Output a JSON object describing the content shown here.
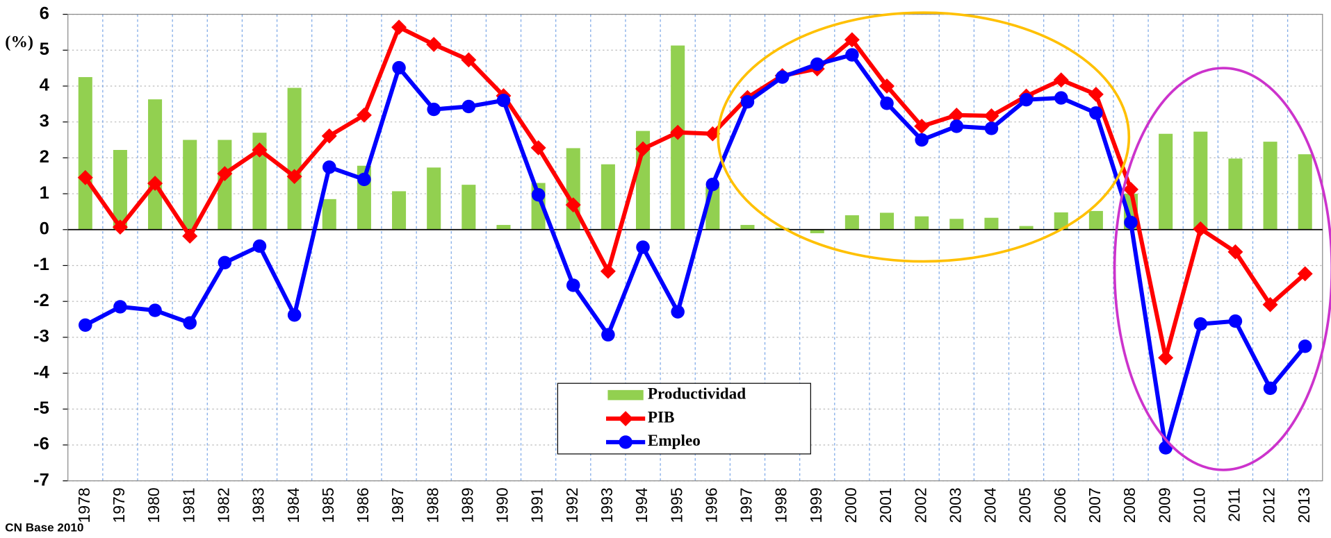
{
  "chart_data": {
    "type": "combo",
    "ylabel": "(%)",
    "source": "CN Base 2010",
    "categories": [
      "1978",
      "1979",
      "1980",
      "1981",
      "1982",
      "1983",
      "1984",
      "1985",
      "1986",
      "1987",
      "1988",
      "1989",
      "1990",
      "1991",
      "1992",
      "1993",
      "1994",
      "1995",
      "1996",
      "1997",
      "1998",
      "1999",
      "2000",
      "2001",
      "2002",
      "2003",
      "2004",
      "2005",
      "2006",
      "2007",
      "2008",
      "2009",
      "2010",
      "2011",
      "2012",
      "2013"
    ],
    "series": [
      {
        "name": "Productividad",
        "type": "bar",
        "color": "#92d050",
        "values": [
          4.25,
          2.22,
          3.63,
          2.5,
          2.5,
          2.7,
          3.95,
          0.85,
          1.78,
          1.07,
          1.73,
          1.25,
          0.13,
          1.3,
          2.27,
          1.82,
          2.75,
          5.13,
          1.2,
          0.13,
          0.05,
          -0.1,
          0.4,
          0.47,
          0.37,
          0.3,
          0.33,
          0.1,
          0.48,
          0.52,
          1.0,
          2.67,
          2.73,
          1.98,
          2.45,
          2.1
        ]
      },
      {
        "name": "PIB",
        "type": "line",
        "marker": "diamond",
        "color": "#ff0000",
        "values": [
          1.45,
          0.07,
          1.29,
          -0.18,
          1.56,
          2.22,
          1.48,
          2.61,
          3.19,
          5.64,
          5.16,
          4.73,
          3.73,
          2.28,
          0.69,
          -1.16,
          2.25,
          2.71,
          2.67,
          3.68,
          4.29,
          4.48,
          5.29,
          4.0,
          2.88,
          3.19,
          3.17,
          3.72,
          4.17,
          3.77,
          1.12,
          -3.57,
          0.02,
          -0.62,
          -2.09,
          -1.23
        ]
      },
      {
        "name": "Empleo",
        "type": "line",
        "marker": "circle",
        "color": "#0000ff",
        "values": [
          -2.66,
          -2.15,
          -2.25,
          -2.6,
          -0.92,
          -0.46,
          -2.38,
          1.74,
          1.4,
          4.51,
          3.35,
          3.43,
          3.6,
          0.97,
          -1.55,
          -2.93,
          -0.49,
          -2.29,
          1.26,
          3.56,
          4.25,
          4.61,
          4.87,
          3.52,
          2.5,
          2.88,
          2.82,
          3.62,
          3.67,
          3.25,
          0.2,
          -6.08,
          -2.63,
          -2.55,
          -4.42,
          -3.25
        ]
      }
    ],
    "ylim": [
      -7,
      6
    ],
    "yticks": [
      -7,
      -6,
      -5,
      -4,
      -3,
      -2,
      -1,
      0,
      1,
      2,
      3,
      4,
      5,
      6
    ],
    "grid": true
  }
}
